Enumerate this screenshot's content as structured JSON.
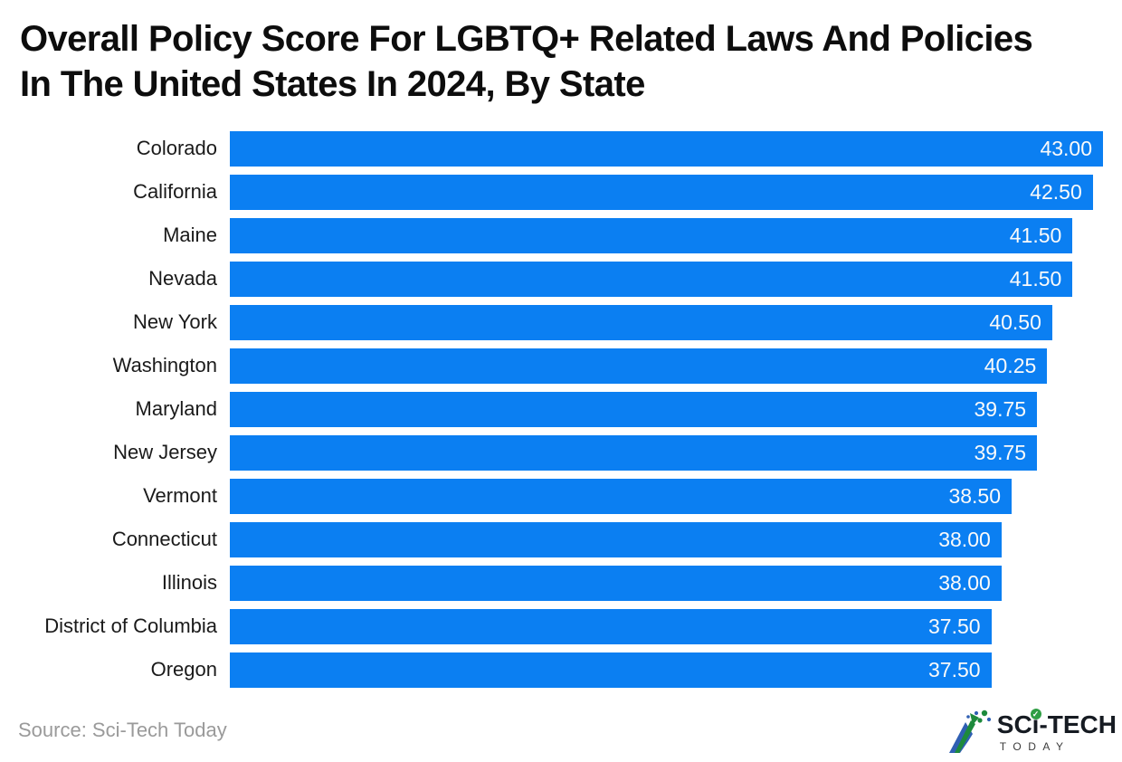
{
  "title": {
    "line1": "Overall Policy Score For LGBTQ+ Related Laws And Policies",
    "line2": "In The United States In 2024, By State"
  },
  "source": {
    "label": "Source: Sci-Tech Today"
  },
  "logo": {
    "brand_part1": "SC",
    "brand_part2": "i",
    "brand_part3": "-TECH",
    "brand_sub": "TODAY",
    "check_glyph": "✓",
    "icon": "mountain-arrow-dots-icon",
    "colors": {
      "blue": "#2f5fb3",
      "green": "#1d8a3c",
      "dark": "#161b22"
    }
  },
  "chart_data": {
    "type": "bar",
    "orientation": "horizontal",
    "title": "Overall Policy Score For LGBTQ+ Related Laws And Policies In The United States In 2024, By State",
    "categories": [
      "Colorado",
      "California",
      "Maine",
      "Nevada",
      "New York",
      "Washington",
      "Maryland",
      "New Jersey",
      "Vermont",
      "Connecticut",
      "Illinois",
      "District of Columbia",
      "Oregon"
    ],
    "values": [
      43.0,
      42.5,
      41.5,
      41.5,
      40.5,
      40.25,
      39.75,
      39.75,
      38.5,
      38.0,
      38.0,
      37.5,
      37.5
    ],
    "value_labels": [
      "43.00",
      "42.50",
      "41.50",
      "41.50",
      "40.50",
      "40.25",
      "39.75",
      "39.75",
      "38.50",
      "38.00",
      "38.00",
      "37.50",
      "37.50"
    ],
    "xlabel": "",
    "ylabel": "",
    "xlim": [
      0,
      43
    ],
    "grid": false,
    "legend": false,
    "bar_color": "#0b7ff2",
    "value_label_position": "inside-end",
    "value_label_color": "#fafafa"
  }
}
